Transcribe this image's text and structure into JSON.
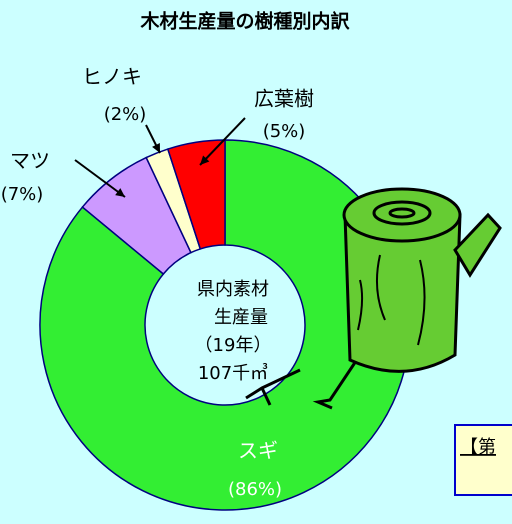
{
  "chart_data": {
    "type": "donut",
    "title": "木材生産量の樹種別内訳",
    "categories": [
      "スギ",
      "マツ",
      "ヒノキ",
      "広葉樹"
    ],
    "values": [
      86,
      7,
      2,
      5
    ],
    "value_labels": [
      "(86%)",
      "(7%)",
      "(2%)",
      "(5%)"
    ],
    "colors": [
      "#33ee33",
      "#cc99ff",
      "#ffffcc",
      "#ff0000"
    ],
    "center_text": [
      "県内素材",
      "生産量",
      "（19年）",
      "107千㎥"
    ],
    "annotation": "【第"
  }
}
